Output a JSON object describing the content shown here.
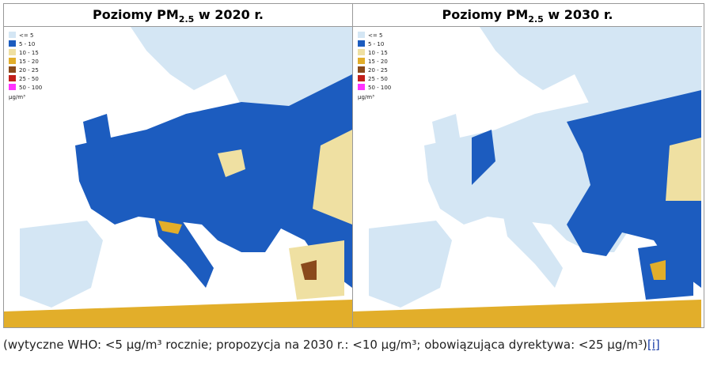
{
  "panels": [
    {
      "title": {
        "prefix": "Poziomy PM",
        "subscript": "2.5",
        "suffix": " w 2020 r."
      }
    },
    {
      "title": {
        "prefix": "Poziomy PM",
        "subscript": "2.5",
        "suffix": " w 2030 r."
      }
    }
  ],
  "legend": {
    "items": [
      {
        "label": "<= 5",
        "color": "#d4e6f4"
      },
      {
        "label": "5 - 10",
        "color": "#1c5cbf"
      },
      {
        "label": "10 - 15",
        "color": "#efe0a2"
      },
      {
        "label": "15 - 20",
        "color": "#e2ae2a"
      },
      {
        "label": "20 - 25",
        "color": "#8a4a1c"
      },
      {
        "label": "25 - 50",
        "color": "#c21f1a"
      },
      {
        "label": "50 - 100",
        "color": "#ff33ff"
      }
    ],
    "unit": "µg/m³"
  },
  "caption": {
    "text": "(wytyczne WHO: <5 µg/m³ rocznie; propozycja na 2030 r.: <10 µg/m³; obowiązująca dyrektywa: <25 µg/m³)",
    "link": "[i]"
  }
}
